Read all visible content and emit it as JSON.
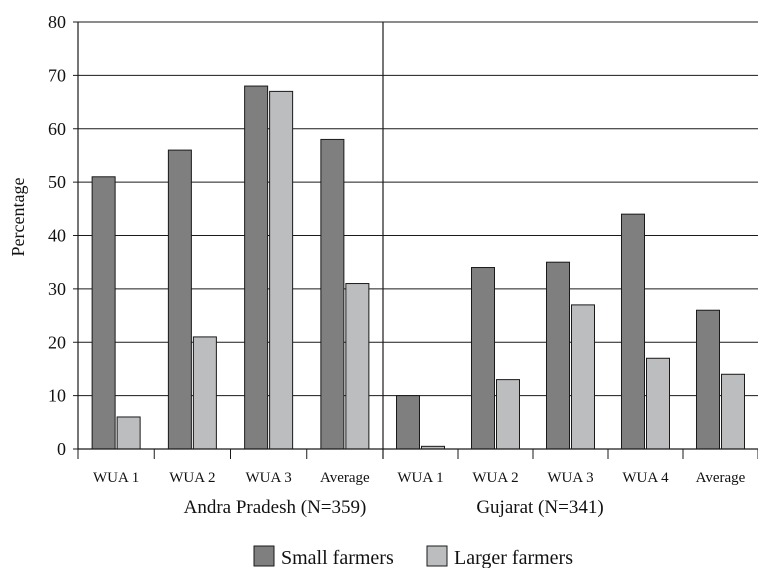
{
  "chart_data": {
    "type": "bar",
    "ylabel": "Percentage",
    "ylim": [
      0,
      80
    ],
    "yticks": [
      0,
      10,
      20,
      30,
      40,
      50,
      60,
      70,
      80
    ],
    "grid": true,
    "legend_position": "bottom",
    "groups": [
      {
        "name": "Andra Pradesh (N=359)",
        "categories": [
          "WUA 1",
          "WUA 2",
          "WUA 3",
          "Average"
        ],
        "series": [
          {
            "name": "Small farmers",
            "values": [
              51,
              56,
              68,
              58
            ]
          },
          {
            "name": "Larger  farmers",
            "values": [
              6,
              21,
              67,
              31
            ]
          }
        ]
      },
      {
        "name": "Gujarat (N=341)",
        "categories": [
          "WUA 1",
          "WUA 2",
          "WUA 3",
          "WUA 4",
          "Average"
        ],
        "series": [
          {
            "name": "Small farmers",
            "values": [
              10,
              34,
              35,
              44,
              26
            ]
          },
          {
            "name": "Larger  farmers",
            "values": [
              0.5,
              13,
              27,
              17,
              14
            ]
          }
        ]
      }
    ],
    "legend": [
      {
        "name": "Small farmers",
        "color": "#7f7f80"
      },
      {
        "name": "Larger  farmers",
        "color": "#bcbdbf"
      }
    ]
  }
}
